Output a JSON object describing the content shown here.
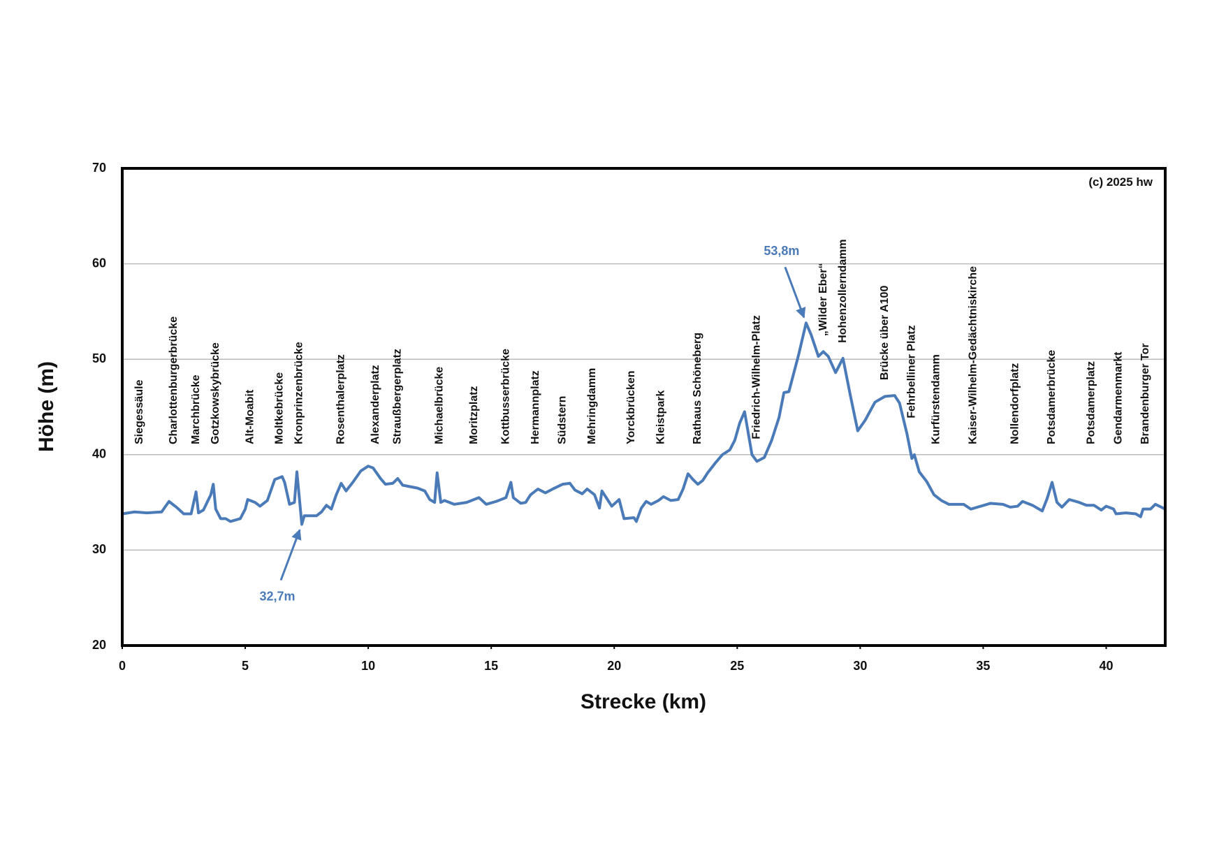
{
  "chart_data": {
    "type": "line",
    "ylabel": "Höhe (m)",
    "xlabel": "Strecke (km)",
    "credit": "(c) 2025 hw",
    "xlim": [
      0,
      42.4
    ],
    "xticks": [
      0,
      5,
      10,
      15,
      20,
      25,
      30,
      35,
      40
    ],
    "ylim": [
      20,
      70
    ],
    "yticks": [
      20,
      30,
      40,
      50,
      60,
      70
    ],
    "grid": true,
    "x": [
      0,
      0.5,
      1,
      1.6,
      1.9,
      2.2,
      2.5,
      2.8,
      3.0,
      3.1,
      3.3,
      3.6,
      3.7,
      3.8,
      4.0,
      4.2,
      4.4,
      4.8,
      5.0,
      5.1,
      5.4,
      5.6,
      5.9,
      6.2,
      6.5,
      6.6,
      6.8,
      7.0,
      7.1,
      7.3,
      7.4,
      7.9,
      8.1,
      8.3,
      8.5,
      8.7,
      8.9,
      9.1,
      9.4,
      9.7,
      10.0,
      10.2,
      10.5,
      10.7,
      11.0,
      11.2,
      11.4,
      12.0,
      12.3,
      12.5,
      12.7,
      12.8,
      12.95,
      13.1,
      13.5,
      14.0,
      14.3,
      14.5,
      14.8,
      15.2,
      15.6,
      15.8,
      15.9,
      16.2,
      16.4,
      16.6,
      16.9,
      17.2,
      17.5,
      17.9,
      18.2,
      18.4,
      18.7,
      18.9,
      19.2,
      19.4,
      19.5,
      19.7,
      19.9,
      20.2,
      20.4,
      20.8,
      20.9,
      21.1,
      21.3,
      21.5,
      21.8,
      22.0,
      22.3,
      22.6,
      22.8,
      23.0,
      23.2,
      23.4,
      23.6,
      23.8,
      24.1,
      24.4,
      24.7,
      24.9,
      25.1,
      25.3,
      25.4,
      25.6,
      25.8,
      26.1,
      26.4,
      26.7,
      26.9,
      27.1,
      27.5,
      27.8,
      28.0,
      28.3,
      28.5,
      28.7,
      29.0,
      29.3,
      29.4,
      29.6,
      29.9,
      30.2,
      30.6,
      31.0,
      31.4,
      31.6,
      31.9,
      32.1,
      32.2,
      32.4,
      32.7,
      33.0,
      33.3,
      33.6,
      33.9,
      34.2,
      34.5,
      34.9,
      35.3,
      35.8,
      36.1,
      36.4,
      36.6,
      37.0,
      37.4,
      37.6,
      37.8,
      38.0,
      38.2,
      38.5,
      38.9,
      39.2,
      39.5,
      39.8,
      40.0,
      40.3,
      40.4,
      40.8,
      41.2,
      41.4,
      41.5,
      41.8,
      42.0,
      42.4
    ],
    "series": [
      {
        "color": "#4a7ab8",
        "values": [
          33.8,
          34.0,
          33.9,
          34.0,
          35.1,
          34.5,
          33.8,
          33.8,
          36.1,
          33.9,
          34.2,
          35.8,
          36.9,
          34.3,
          33.3,
          33.3,
          33.0,
          33.3,
          34.3,
          35.3,
          35.0,
          34.6,
          35.2,
          37.4,
          37.7,
          37.1,
          34.8,
          35.0,
          38.2,
          32.7,
          33.6,
          33.6,
          34.0,
          34.7,
          34.3,
          35.8,
          37.0,
          36.2,
          37.2,
          38.3,
          38.8,
          38.6,
          37.5,
          36.9,
          37.0,
          37.5,
          36.8,
          36.5,
          36.2,
          35.3,
          35.0,
          38.1,
          35.0,
          35.2,
          34.8,
          35.0,
          35.3,
          35.5,
          34.8,
          35.1,
          35.5,
          37.1,
          35.5,
          34.9,
          35.0,
          35.8,
          36.4,
          36.0,
          36.4,
          36.9,
          37.0,
          36.3,
          35.9,
          36.4,
          35.8,
          34.4,
          36.2,
          35.4,
          34.6,
          35.3,
          33.3,
          33.4,
          33.0,
          34.4,
          35.1,
          34.8,
          35.2,
          35.6,
          35.2,
          35.3,
          36.4,
          38.0,
          37.4,
          36.9,
          37.3,
          38.1,
          39.1,
          40.0,
          40.5,
          41.5,
          43.3,
          44.5,
          43.0,
          40.0,
          39.3,
          39.7,
          41.5,
          43.9,
          46.5,
          46.6,
          50.5,
          53.8,
          52.6,
          50.3,
          50.8,
          50.3,
          48.6,
          50.1,
          48.8,
          46.2,
          42.5,
          43.6,
          45.5,
          46.1,
          46.2,
          45.4,
          42.2,
          39.6,
          40.0,
          38.2,
          37.2,
          35.8,
          35.2,
          34.8,
          34.8,
          34.8,
          34.3,
          34.6,
          34.9,
          34.8,
          34.5,
          34.6,
          35.1,
          34.7,
          34.1,
          35.4,
          37.1,
          35.0,
          34.5,
          35.3,
          35.0,
          34.7,
          34.7,
          34.2,
          34.6,
          34.3,
          33.8,
          33.9,
          33.8,
          33.5,
          34.3,
          34.3,
          34.8,
          34.3
        ]
      }
    ],
    "stations": [
      {
        "label": "Siegessäule",
        "x": 0.7
      },
      {
        "label": "Charlottenburgerbrücke",
        "x": 2.1
      },
      {
        "label": "Marchbrücke",
        "x": 3.0
      },
      {
        "label": "Gotzkowskybrücke",
        "x": 3.8
      },
      {
        "label": "Alt-Moabit",
        "x": 5.2
      },
      {
        "label": "Moltkebrücke",
        "x": 6.4
      },
      {
        "label": "Kronprinzenbrücke",
        "x": 7.2
      },
      {
        "label": "Rosenthalerplatz",
        "x": 8.9
      },
      {
        "label": "Alexanderplatz",
        "x": 10.3
      },
      {
        "label": "Straußbergerplatz",
        "x": 11.2
      },
      {
        "label": "Michaelbrücke",
        "x": 12.9
      },
      {
        "label": "Moritzplatz",
        "x": 14.3
      },
      {
        "label": "Kottbusserbrücke",
        "x": 15.6
      },
      {
        "label": "Hermannplatz",
        "x": 16.8
      },
      {
        "label": "Südstern",
        "x": 17.9
      },
      {
        "label": "Mehringdamm",
        "x": 19.1
      },
      {
        "label": "Yorckbrücken",
        "x": 20.7
      },
      {
        "label": "Kleistpark",
        "x": 21.9
      },
      {
        "label": "Rathaus Schöneberg",
        "x": 23.4
      },
      {
        "label": "Friedrich-Wilhelm-Platz",
        "x": 25.8
      },
      {
        "label": "„Wilder Eber“",
        "x": 28.5
      },
      {
        "label": "Hohenzollerndamm",
        "x": 29.3
      },
      {
        "label": "Brücke über A100",
        "x": 31.0
      },
      {
        "label": "Fehrbelliner Platz",
        "x": 32.1
      },
      {
        "label": "Kurfürstendamm",
        "x": 33.1
      },
      {
        "label": "Kaiser-Wilhelm-Gedächtniskirche",
        "x": 34.6
      },
      {
        "label": "Nollendorfplatz",
        "x": 36.3
      },
      {
        "label": "Potsdamerbrücke",
        "x": 37.8
      },
      {
        "label": "Potsdamerplatz",
        "x": 39.4
      },
      {
        "label": "Gendarmenmarkt",
        "x": 40.5
      },
      {
        "label": "Brandenburger Tor",
        "x": 41.6
      }
    ],
    "annotations": [
      {
        "label": "53,8m",
        "x": 27.8,
        "y": 53.8
      },
      {
        "label": "32,7m",
        "x": 7.3,
        "y": 32.7
      }
    ]
  }
}
